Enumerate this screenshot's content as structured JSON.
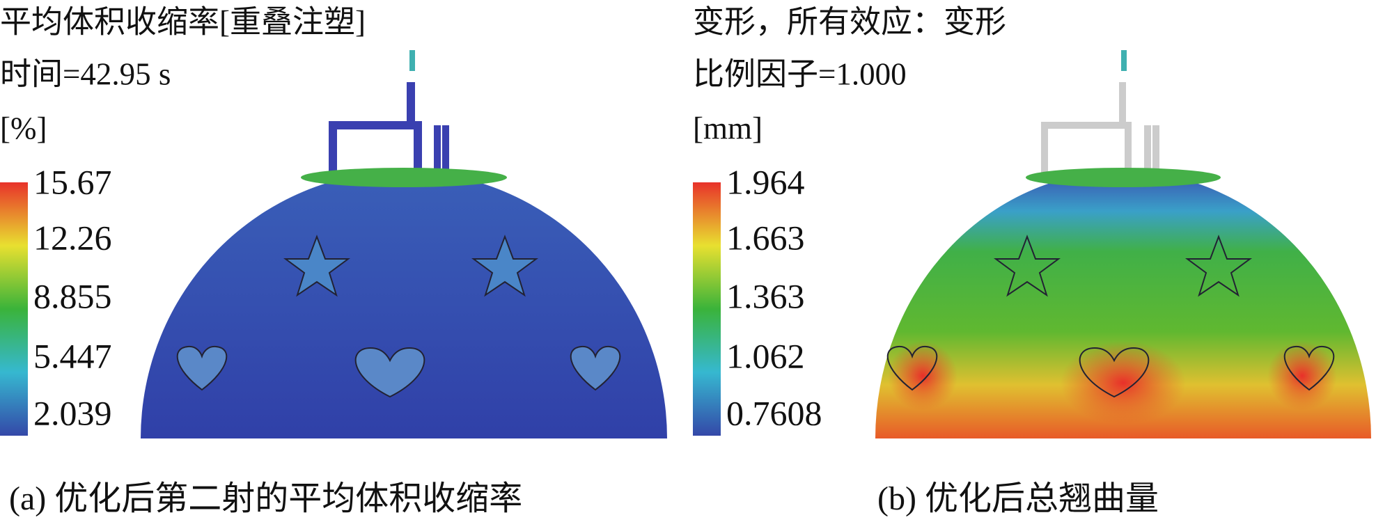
{
  "panels": [
    {
      "title_lines": [
        "平均体积收缩率[重叠注塑]",
        "时间=42.95 s"
      ],
      "unit": "[%]",
      "legend_labels": [
        "15.67",
        "12.26",
        "8.855",
        "5.447",
        "2.039"
      ],
      "caption": "(a) 优化后第二射的平均体积收缩率"
    },
    {
      "title_lines": [
        "变形，所有效应：变形",
        "比例因子=1.000"
      ],
      "unit": "[mm]",
      "legend_labels": [
        "1.964",
        "1.663",
        "1.363",
        "1.062",
        "0.7608"
      ],
      "caption": "(b) 优化后总翘曲量"
    }
  ]
}
